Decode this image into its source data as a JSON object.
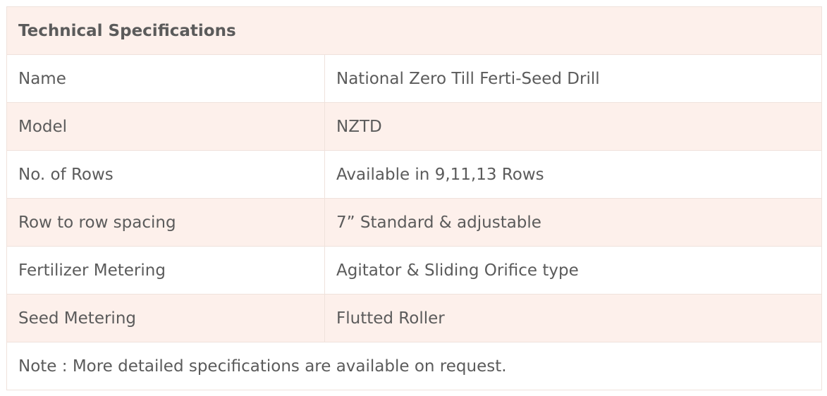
{
  "title": "Technical Specifications",
  "rows": [
    {
      "label": "Name",
      "value": "National Zero Till Ferti-Seed Drill"
    },
    {
      "label": "Model",
      "value": "NZTD"
    },
    {
      "label": "No. of Rows",
      "value": "Available in 9,11,13 Rows"
    },
    {
      "label": "Row to row spacing",
      "value": "7” Standard & adjustable"
    },
    {
      "label": "Fertilizer Metering",
      "value": "Agitator & Sliding Orifice type"
    },
    {
      "label": "Seed Metering",
      "value": "Flutted Roller"
    }
  ],
  "note": "Note : More detailed specifications are available on request.",
  "colors": {
    "shaded_bg": "#fdf0eb",
    "border": "#efe2dc",
    "text": "#5b5b5b"
  }
}
